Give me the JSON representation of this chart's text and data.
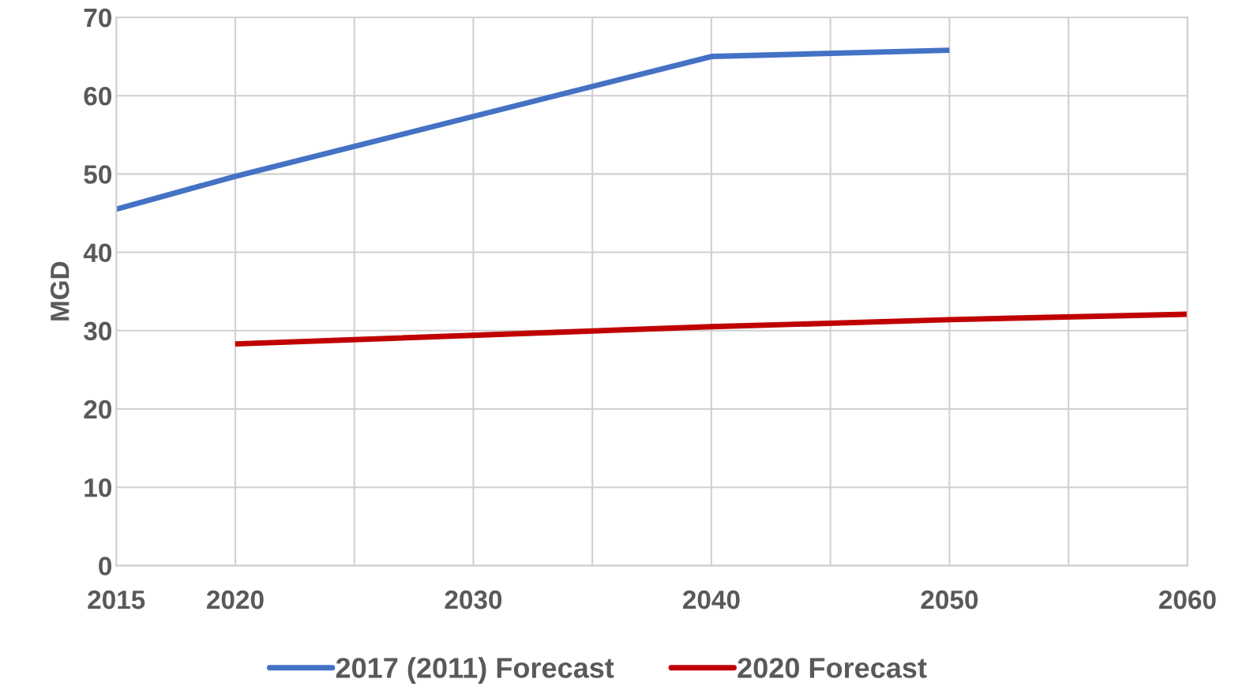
{
  "chart_data": {
    "type": "line",
    "ylabel": "MGD",
    "xlim": [
      2015,
      2060
    ],
    "xticks": [
      2015,
      2020,
      {
        "value": 2025,
        "label": null
      },
      2030,
      {
        "value": 2035,
        "label": null
      },
      2040,
      {
        "value": 2045,
        "label": null
      },
      2050,
      {
        "value": 2055,
        "label": null
      },
      2060
    ],
    "ylim": [
      0,
      70
    ],
    "yticks": [
      0,
      10,
      20,
      30,
      40,
      50,
      60,
      70
    ],
    "grid": true,
    "legend": "bottom",
    "marker": "none",
    "line_style": "solid",
    "series": [
      {
        "name": "2017 (2011) Forecast",
        "color": "#4472c4",
        "x": [
          2015,
          2020,
          2040,
          2050
        ],
        "values": [
          45.5,
          49.7,
          65.0,
          65.8
        ]
      },
      {
        "name": "2020 Forecast",
        "color": "#c00000",
        "x": [
          2020,
          2040,
          2050,
          2060
        ],
        "values": [
          28.3,
          30.5,
          31.4,
          32.1
        ]
      }
    ]
  }
}
